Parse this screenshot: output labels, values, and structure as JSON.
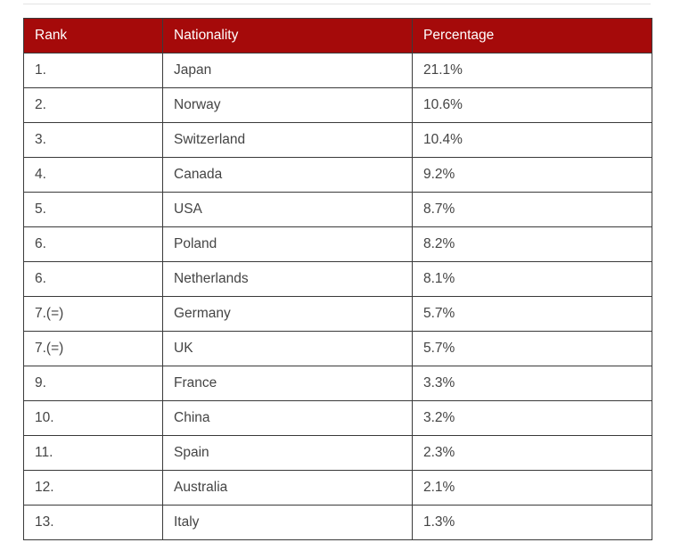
{
  "table": {
    "header_color": "#a50a0a",
    "columns": [
      "Rank",
      "Nationality",
      "Percentage"
    ],
    "rows": [
      [
        "1.",
        "Japan",
        "21.1%"
      ],
      [
        "2.",
        "Norway",
        "10.6%"
      ],
      [
        "3.",
        "Switzerland",
        "10.4%"
      ],
      [
        "4.",
        "Canada",
        "9.2%"
      ],
      [
        "5.",
        "USA",
        "8.7%"
      ],
      [
        "6.",
        "Poland",
        "8.2%"
      ],
      [
        "6.",
        "Netherlands",
        "8.1%"
      ],
      [
        "7.(=)",
        "Germany",
        "5.7%"
      ],
      [
        "7.(=)",
        "UK",
        "5.7%"
      ],
      [
        "9.",
        "France",
        "3.3%"
      ],
      [
        "10.",
        "China",
        "3.2%"
      ],
      [
        "11.",
        "Spain",
        "2.3%"
      ],
      [
        "12.",
        "Australia",
        "2.1%"
      ],
      [
        "13.",
        "Italy",
        "1.3%"
      ]
    ]
  }
}
